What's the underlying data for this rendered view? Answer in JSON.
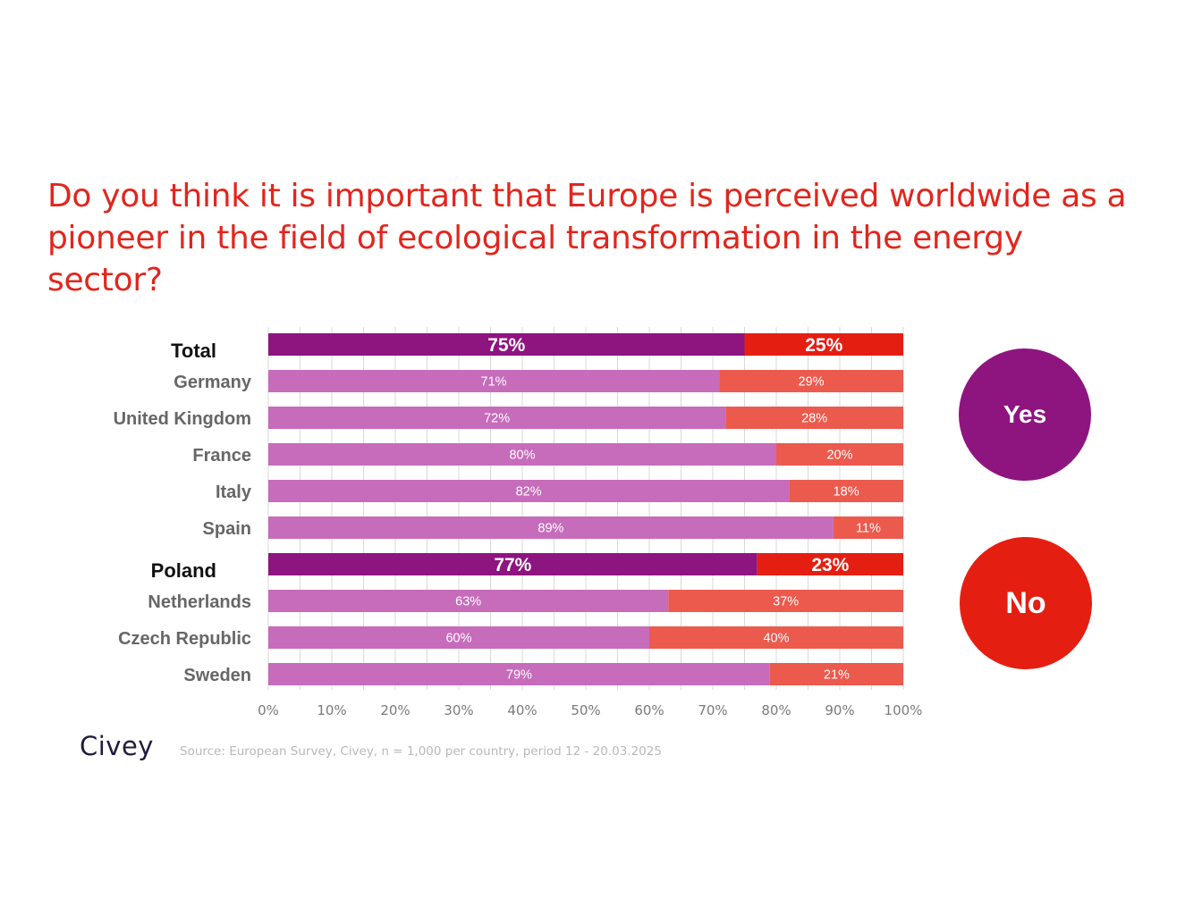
{
  "title": "Do you think it is important that Europe is perceived worldwide as a pioneer in the field of ecological transformation in the energy sector?",
  "legend": {
    "yes": "Yes",
    "no": "No"
  },
  "brand": "Civey",
  "source": "Source: European Survey, Civey, n = 1,000 per country, period 12 - 20.03.2025",
  "colors": {
    "yes_highlight": "#8e1480",
    "no_highlight": "#e51e12",
    "yes": "#c66cbb",
    "no": "#ec5a4d",
    "grid": "#d9d9d9",
    "title": "#e2261d"
  },
  "chart_data": {
    "type": "bar",
    "orientation": "horizontal",
    "stacked": true,
    "categories": [
      "Total",
      "Germany",
      "United Kingdom",
      "France",
      "Italy",
      "Spain",
      "Poland",
      "Netherlands",
      "Czech Republic",
      "Sweden"
    ],
    "highlighted": [
      "Total",
      "Poland"
    ],
    "series": [
      {
        "name": "Yes",
        "values": [
          75,
          71,
          72,
          80,
          82,
          89,
          77,
          63,
          60,
          79
        ]
      },
      {
        "name": "No",
        "values": [
          25,
          29,
          28,
          20,
          18,
          11,
          23,
          37,
          40,
          21
        ]
      }
    ],
    "value_labels": {
      "Yes": [
        "75%",
        "71%",
        "72%",
        "80%",
        "82%",
        "89%",
        "77%",
        "63%",
        "60%",
        "79%"
      ],
      "No": [
        "25%",
        "29%",
        "28%",
        "20%",
        "18%",
        "11%",
        "23%",
        "37%",
        "40%",
        "21%"
      ]
    },
    "x_ticks": [
      "0%",
      "10%",
      "20%",
      "30%",
      "40%",
      "50%",
      "60%",
      "70%",
      "80%",
      "90%",
      "100%"
    ],
    "xlim": [
      0,
      100
    ],
    "grid": true,
    "legend_position": "right"
  }
}
